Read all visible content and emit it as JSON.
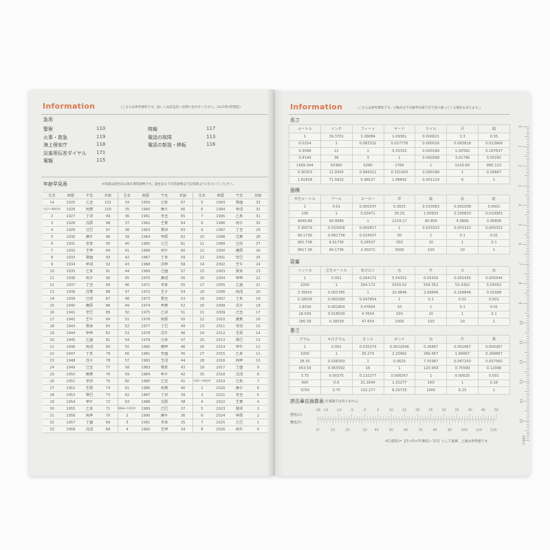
{
  "left_page": {
    "title": "Information",
    "note": "(こちらは参考資料です。詳しくは該当先へお問い合わせください。2025年4月現在)",
    "emergency": {
      "heading": "急用",
      "col1": [
        {
          "label": "警察",
          "number": "110"
        },
        {
          "label": "火事・救急",
          "number": "119"
        },
        {
          "label": "海上保安庁",
          "number": "118"
        },
        {
          "label": "災害用伝言ダイヤル",
          "number": "171"
        },
        {
          "label": "電報",
          "number": "115"
        }
      ],
      "col2": [
        {
          "label": "時報",
          "number": "117"
        },
        {
          "label": "電話の故障",
          "number": "113"
        },
        {
          "label": "電話の新設・移転",
          "number": "116"
        }
      ]
    },
    "age_table": {
      "heading": "年齢早見表",
      "note": "※年齢は誕生日以後の満年齢数です。誕生日までの年齢数は下記年齢より1をひいてください。",
      "headers": [
        "生年",
        "西暦",
        "干支",
        "年齢"
      ],
      "groups": [
        [
          [
            "14",
            "1925",
            "乙丑",
            "101"
          ],
          [
            "大正15 昭和元年",
            "1926",
            "丙寅",
            "100"
          ],
          [
            "2",
            "1927",
            "丁卯",
            "99"
          ],
          [
            "3",
            "1928",
            "戊辰",
            "98"
          ],
          [
            "4",
            "1929",
            "己巳",
            "97"
          ],
          [
            "5",
            "1930",
            "庚午",
            "96"
          ],
          [
            "6",
            "1931",
            "辛未",
            "95"
          ],
          [
            "7",
            "1932",
            "壬申",
            "94"
          ],
          [
            "8",
            "1933",
            "癸酉",
            "93"
          ],
          [
            "9",
            "1934",
            "甲戌",
            "92"
          ],
          [
            "10",
            "1935",
            "乙亥",
            "91"
          ],
          [
            "11",
            "1936",
            "丙子",
            "90"
          ],
          [
            "12",
            "1937",
            "丁丑",
            "89"
          ],
          [
            "13",
            "1938",
            "戊寅",
            "88"
          ],
          [
            "14",
            "1939",
            "己卯",
            "87"
          ],
          [
            "15",
            "1940",
            "庚辰",
            "86"
          ],
          [
            "16",
            "1941",
            "辛巳",
            "85"
          ],
          [
            "17",
            "1942",
            "壬午",
            "84"
          ],
          [
            "18",
            "1943",
            "癸未",
            "83"
          ],
          [
            "19",
            "1944",
            "甲申",
            "82"
          ],
          [
            "20",
            "1945",
            "乙酉",
            "81"
          ],
          [
            "21",
            "1946",
            "丙戌",
            "80"
          ],
          [
            "22",
            "1947",
            "丁亥",
            "79"
          ],
          [
            "23",
            "1948",
            "戊子",
            "78"
          ],
          [
            "24",
            "1949",
            "己丑",
            "77"
          ],
          [
            "25",
            "1950",
            "庚寅",
            "76"
          ],
          [
            "26",
            "1951",
            "辛卯",
            "75"
          ],
          [
            "27",
            "1952",
            "壬辰",
            "74"
          ],
          [
            "28",
            "1953",
            "癸巳",
            "73"
          ],
          [
            "29",
            "1954",
            "甲午",
            "72"
          ],
          [
            "30",
            "1955",
            "乙未",
            "71"
          ],
          [
            "31",
            "1956",
            "丙申",
            "70"
          ],
          [
            "32",
            "1957",
            "丁酉",
            "69"
          ],
          [
            "33",
            "1958",
            "戊戌",
            "68"
          ]
        ],
        [
          [
            "34",
            "1959",
            "己亥",
            "67"
          ],
          [
            "35",
            "1960",
            "庚子",
            "66"
          ],
          [
            "36",
            "1961",
            "辛丑",
            "65"
          ],
          [
            "37",
            "1962",
            "壬寅",
            "64"
          ],
          [
            "38",
            "1963",
            "癸卯",
            "63"
          ],
          [
            "39",
            "1964",
            "甲辰",
            "62"
          ],
          [
            "40",
            "1965",
            "乙巳",
            "61"
          ],
          [
            "41",
            "1966",
            "丙午",
            "60"
          ],
          [
            "42",
            "1967",
            "丁未",
            "59"
          ],
          [
            "43",
            "1968",
            "戊申",
            "58"
          ],
          [
            "44",
            "1969",
            "己酉",
            "57"
          ],
          [
            "45",
            "1970",
            "庚戌",
            "56"
          ],
          [
            "46",
            "1971",
            "辛亥",
            "55"
          ],
          [
            "47",
            "1972",
            "壬子",
            "54"
          ],
          [
            "48",
            "1973",
            "癸丑",
            "53"
          ],
          [
            "49",
            "1974",
            "甲寅",
            "52"
          ],
          [
            "50",
            "1975",
            "乙卯",
            "51"
          ],
          [
            "51",
            "1976",
            "丙辰",
            "50"
          ],
          [
            "52",
            "1977",
            "丁巳",
            "49"
          ],
          [
            "53",
            "1978",
            "戊午",
            "48"
          ],
          [
            "54",
            "1979",
            "己未",
            "47"
          ],
          [
            "55",
            "1980",
            "庚申",
            "46"
          ],
          [
            "56",
            "1981",
            "辛酉",
            "45"
          ],
          [
            "57",
            "1982",
            "壬戌",
            "44"
          ],
          [
            "58",
            "1983",
            "癸亥",
            "43"
          ],
          [
            "59",
            "1984",
            "甲子",
            "42"
          ],
          [
            "60",
            "1985",
            "乙丑",
            "41"
          ],
          [
            "61",
            "1986",
            "丙寅",
            "40"
          ],
          [
            "62",
            "1987",
            "丁卯",
            "39"
          ],
          [
            "63",
            "1988",
            "戊辰",
            "38"
          ],
          [
            "昭和64 平成元年",
            "1989",
            "己巳",
            "37"
          ],
          [
            "2",
            "1990",
            "庚午",
            "36"
          ],
          [
            "3",
            "1991",
            "辛未",
            "35"
          ],
          [
            "4",
            "1992",
            "壬申",
            "34"
          ]
        ],
        [
          [
            "5",
            "1993",
            "癸酉",
            "33"
          ],
          [
            "6",
            "1994",
            "甲戌",
            "32"
          ],
          [
            "7",
            "1995",
            "乙亥",
            "31"
          ],
          [
            "8",
            "1996",
            "丙子",
            "30"
          ],
          [
            "9",
            "1997",
            "丁丑",
            "29"
          ],
          [
            "10",
            "1998",
            "戊寅",
            "28"
          ],
          [
            "11",
            "1999",
            "己卯",
            "27"
          ],
          [
            "12",
            "2000",
            "庚辰",
            "26"
          ],
          [
            "13",
            "2001",
            "辛巳",
            "25"
          ],
          [
            "14",
            "2002",
            "壬午",
            "24"
          ],
          [
            "15",
            "2003",
            "癸未",
            "23"
          ],
          [
            "16",
            "2004",
            "甲申",
            "22"
          ],
          [
            "17",
            "2005",
            "乙酉",
            "21"
          ],
          [
            "18",
            "2006",
            "丙戌",
            "20"
          ],
          [
            "19",
            "2007",
            "丁亥",
            "19"
          ],
          [
            "20",
            "2008",
            "戊子",
            "18"
          ],
          [
            "21",
            "2009",
            "己丑",
            "17"
          ],
          [
            "22",
            "2010",
            "庚寅",
            "16"
          ],
          [
            "23",
            "2011",
            "辛卯",
            "15"
          ],
          [
            "24",
            "2012",
            "壬辰",
            "14"
          ],
          [
            "25",
            "2013",
            "癸巳",
            "13"
          ],
          [
            "26",
            "2014",
            "甲午",
            "12"
          ],
          [
            "27",
            "2015",
            "乙未",
            "11"
          ],
          [
            "28",
            "2016",
            "丙申",
            "10"
          ],
          [
            "29",
            "2017",
            "丁酉",
            "9"
          ],
          [
            "30",
            "2018",
            "戊戌",
            "8"
          ],
          [
            "平成31 令和元年",
            "2019",
            "己亥",
            "7"
          ],
          [
            "2",
            "2020",
            "庚子",
            "6"
          ],
          [
            "3",
            "2021",
            "辛丑",
            "5"
          ],
          [
            "4",
            "2022",
            "壬寅",
            "4"
          ],
          [
            "5",
            "2023",
            "癸卯",
            "3"
          ],
          [
            "6",
            "2024",
            "甲辰",
            "2"
          ],
          [
            "7",
            "2025",
            "乙巳",
            "1"
          ],
          [
            "8",
            "2026",
            "丙午",
            "0"
          ]
        ]
      ]
    }
  },
  "right_page": {
    "title": "Information",
    "note": "(こちらは参考資料です。小数点以下の数字の取り方で多少違ってくる場合もあります。)",
    "tables": [
      {
        "heading": "長さ",
        "headers": [
          "メートル",
          "インチ",
          "フィート",
          "ヤード",
          "マイル",
          "尺",
          "間"
        ],
        "rows": [
          [
            "1",
            "39.3701",
            "3.28084",
            "1.09361",
            "0.000621",
            "3.3",
            "0.55"
          ],
          [
            "0.0254",
            "1",
            "0.083332",
            "0.027778",
            "0.000016",
            "0.083818",
            "0.013969"
          ],
          [
            "0.3048",
            "12",
            "1",
            "0.33333",
            "0.000189",
            "1.00582",
            "0.167637"
          ],
          [
            "0.9144",
            "36",
            "3",
            "1",
            "0.000568",
            "3.01746",
            "0.50291"
          ],
          [
            "1609.344",
            "63360",
            "5280",
            "1760",
            "1",
            "5310.83",
            "885.123"
          ],
          [
            "0.30303",
            "11.9305",
            "0.994211",
            "0.331403",
            "0.000188",
            "1",
            "0.16667"
          ],
          [
            "1.81818",
            "71.5832",
            "5.96527",
            "1.98842",
            "0.001129",
            "6",
            "1"
          ]
        ]
      },
      {
        "heading": "面積",
        "headers": [
          "平方メートル",
          "アール",
          "エーカー",
          "坪",
          "畝",
          "反",
          "町"
        ],
        "rows": [
          [
            "1",
            "0.01",
            "0.000247",
            "0.3025",
            "0.010083",
            "0.001008",
            "0.0001"
          ],
          [
            "100",
            "1",
            "0.02471",
            "30.25",
            "1.00833",
            "0.100833",
            "0.010083"
          ],
          [
            "4046.86",
            "40.4686",
            "1",
            "1224.17",
            "40.806",
            "4.0806",
            "0.40806"
          ],
          [
            "3.30579",
            "0.033058",
            "0.000817",
            "1",
            "0.033333",
            "0.003333",
            "0.000333"
          ],
          [
            "99.1736",
            "0.991736",
            "0.024507",
            "30",
            "1",
            "0.1",
            "0.01"
          ],
          [
            "991.736",
            "9.91736",
            "0.24507",
            "300",
            "10",
            "1",
            "0.1"
          ],
          [
            "9917.36",
            "99.1736",
            "2.45072",
            "3000",
            "100",
            "10",
            "1"
          ]
        ]
      },
      {
        "heading": "容量",
        "headers": [
          "リットル",
          "立方メートル",
          "米ガロン",
          "合",
          "升",
          "斗",
          "石"
        ],
        "rows": [
          [
            "1",
            "0.001",
            "0.264172",
            "5.54352",
            "0.55435",
            "0.055435",
            "0.005544"
          ],
          [
            "1000",
            "1",
            "264.172",
            "5543.52",
            "554.352",
            "55.4352",
            "5.54352"
          ],
          [
            "3.78541",
            "0.003785",
            "1",
            "20.9846",
            "2.09846",
            "0.209846",
            "0.02098"
          ],
          [
            "0.18039",
            "0.000180",
            "0.047654",
            "1",
            "0.1",
            "0.01",
            "0.001"
          ],
          [
            "1.8039",
            "0.001804",
            "0.47654",
            "10",
            "1",
            "0.1",
            "0.01"
          ],
          [
            "18.039",
            "0.018039",
            "4.7654",
            "100",
            "10",
            "1",
            "0.1"
          ],
          [
            "180.39",
            "0.18039",
            "47.654",
            "1000",
            "100",
            "10",
            "1"
          ]
        ]
      },
      {
        "heading": "重さ",
        "headers": [
          "グラム",
          "キログラム",
          "オンス",
          "ポンド",
          "匁",
          "斤",
          "貫"
        ],
        "rows": [
          [
            "1",
            "0.001",
            "0.035274",
            "0.0022046",
            "0.26667",
            "0.001667",
            "0.000267"
          ],
          [
            "1000",
            "1",
            "35.274",
            "2.20462",
            "266.667",
            "1.66667",
            "0.266667"
          ],
          [
            "28.35",
            "0.028350",
            "1",
            "0.0625",
            "7.55987",
            "0.047250",
            "0.007560"
          ],
          [
            "453.59",
            "0.453592",
            "16",
            "1",
            "120.958",
            "0.75599",
            "0.12096"
          ],
          [
            "3.75",
            "0.00375",
            "0.132277",
            "0.008267",
            "1",
            "0.00625",
            "0.001"
          ],
          [
            "600",
            "0.6",
            "21.1644",
            "1.32277",
            "160",
            "1",
            "0.16"
          ],
          [
            "3750",
            "3.75",
            "132.277",
            "8.26733",
            "1000",
            "6.25",
            "1"
          ]
        ]
      }
    ],
    "temperature": {
      "heading": "摂氏華氏換算表",
      "subheading": "(計量器ではありません)",
      "celsius_label": "摂氏(C)",
      "fahrenheit_label": "華氏(F)",
      "celsius_ticks": [
        -18,
        -15,
        -10,
        -5,
        0,
        5,
        10,
        15,
        20,
        25,
        30,
        35,
        40,
        45,
        50
      ],
      "fahrenheit_ticks": [
        0,
        10,
        20,
        32,
        40,
        50,
        60,
        70,
        80,
        90,
        100,
        110,
        120
      ],
      "formula": "※C(摂氏)=【(5÷9)×(F(華氏)−32)】として換算。上表は参考値です。"
    },
    "ruler": {
      "labels": [
        "0",
        "1",
        "2",
        "3",
        "4",
        "5",
        "6",
        "7",
        "8",
        "9",
        "10",
        "11",
        "12",
        "13",
        "14",
        "15",
        "16cm"
      ]
    }
  },
  "colors": {
    "accent": "#d9794e",
    "page": "#ededeb"
  }
}
